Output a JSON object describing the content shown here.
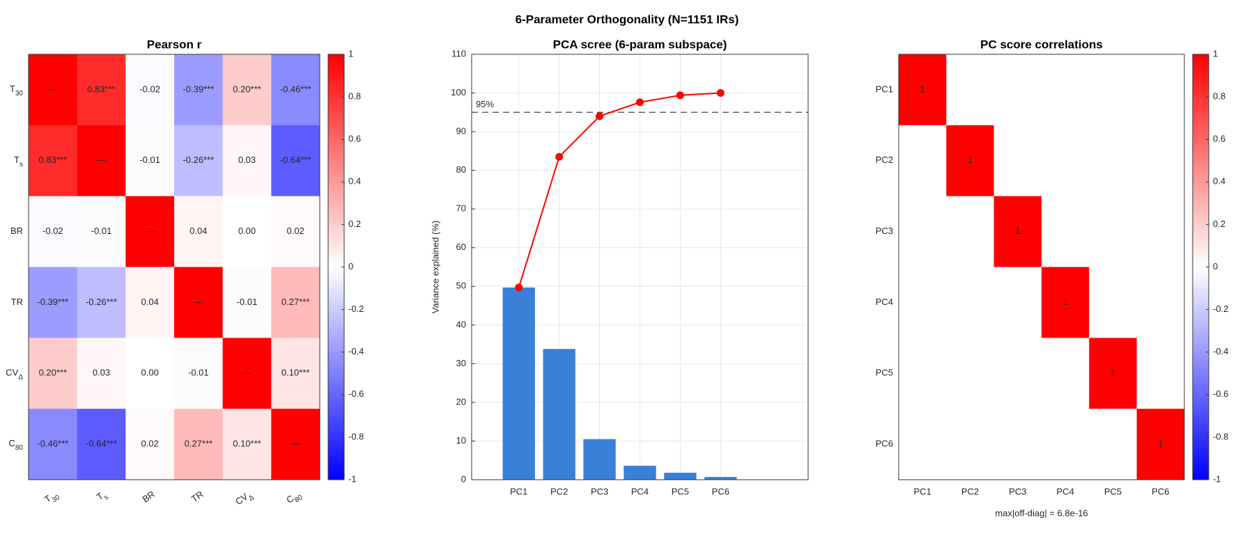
{
  "figure_title": "6-Parameter Orthogonality  (N=1151 IRs)",
  "chart_data": [
    {
      "type": "heatmap",
      "title": "Pearson  r",
      "labels": [
        {
          "text": "T",
          "sub": "30"
        },
        {
          "text": "T",
          "sub": "s"
        },
        "BR",
        "TR",
        {
          "text": "CV",
          "sub": "Δ"
        },
        {
          "text": "C",
          "sub": "80"
        }
      ],
      "values": [
        [
          1,
          0.83,
          -0.02,
          -0.39,
          0.2,
          -0.46
        ],
        [
          0.83,
          1,
          -0.01,
          -0.26,
          0.03,
          -0.64
        ],
        [
          -0.02,
          -0.01,
          1,
          0.04,
          0.0,
          0.02
        ],
        [
          -0.39,
          -0.26,
          0.04,
          1,
          -0.01,
          0.27
        ],
        [
          0.2,
          0.03,
          0.0,
          -0.01,
          1,
          0.1
        ],
        [
          -0.46,
          -0.64,
          0.02,
          0.27,
          0.1,
          1
        ]
      ],
      "value_labels": [
        [
          "—",
          "0.83***",
          "-0.02",
          "-0.39***",
          "0.20***",
          "-0.46***"
        ],
        [
          "0.83***",
          "—",
          "-0.01",
          "-0.26***",
          "0.03",
          "-0.64***"
        ],
        [
          "-0.02",
          "-0.01",
          "—",
          "0.04",
          "0.00",
          "0.02"
        ],
        [
          "-0.39***",
          "-0.26***",
          "0.04",
          "—",
          "-0.01",
          "0.27***"
        ],
        [
          "0.20***",
          "0.03",
          "0.00",
          "-0.01",
          "—",
          "0.10***"
        ],
        [
          "-0.46***",
          "-0.64***",
          "0.02",
          "0.27***",
          "0.10***",
          "—"
        ]
      ],
      "clim": [
        -1,
        1
      ],
      "colormap": [
        "#0000ff",
        "#ffffff",
        "#ff0000"
      ],
      "colorbar_ticks": [
        1,
        0.8,
        0.6,
        0.4,
        0.2,
        0,
        -0.2,
        -0.4,
        -0.6,
        -0.8,
        -1
      ]
    },
    {
      "type": "bar",
      "title": "PCA scree  (6-param subspace)",
      "ylabel": "Variance explained (%)",
      "categories": [
        "PC1",
        "PC2",
        "PC3",
        "PC4",
        "PC5",
        "PC6"
      ],
      "values": [
        49.7,
        33.8,
        10.5,
        3.6,
        1.8,
        0.7
      ],
      "color": "#3a80d8",
      "cumulative": {
        "values": [
          49.7,
          83.5,
          94.0,
          97.6,
          99.4,
          100
        ],
        "color": "#ff0000"
      },
      "ref_line": {
        "value": 95,
        "label": "95%"
      },
      "ylim": [
        0,
        110
      ],
      "yticks": [
        0,
        10,
        20,
        30,
        40,
        50,
        60,
        70,
        80,
        90,
        100,
        110
      ],
      "grid": true
    },
    {
      "type": "heatmap",
      "title": "PC score correlations",
      "labels": [
        "PC1",
        "PC2",
        "PC3",
        "PC4",
        "PC5",
        "PC6"
      ],
      "values": [
        [
          1,
          0,
          0,
          0,
          0,
          0
        ],
        [
          0,
          1,
          0,
          0,
          0,
          0
        ],
        [
          0,
          0,
          1,
          0,
          0,
          0
        ],
        [
          0,
          0,
          0,
          1,
          0,
          0
        ],
        [
          0,
          0,
          0,
          0,
          1,
          0
        ],
        [
          0,
          0,
          0,
          0,
          0,
          1
        ]
      ],
      "value_labels": [
        [
          "1",
          null,
          null,
          null,
          null,
          null
        ],
        [
          null,
          "1",
          null,
          null,
          null,
          null
        ],
        [
          null,
          null,
          "1",
          null,
          null,
          null
        ],
        [
          null,
          null,
          null,
          "1",
          null,
          null
        ],
        [
          null,
          null,
          null,
          null,
          "1",
          null
        ],
        [
          null,
          null,
          null,
          null,
          null,
          "1"
        ]
      ],
      "clim": [
        -1,
        1
      ],
      "colormap": [
        "#0000ff",
        "#ffffff",
        "#ff0000"
      ],
      "colorbar_ticks": [
        1,
        0.8,
        0.6,
        0.4,
        0.2,
        0,
        -0.2,
        -0.4,
        -0.6,
        -0.8,
        -1
      ],
      "note": "max|off-diag| = 6.8e-16",
      "note_color": "#2a9a2a"
    }
  ]
}
